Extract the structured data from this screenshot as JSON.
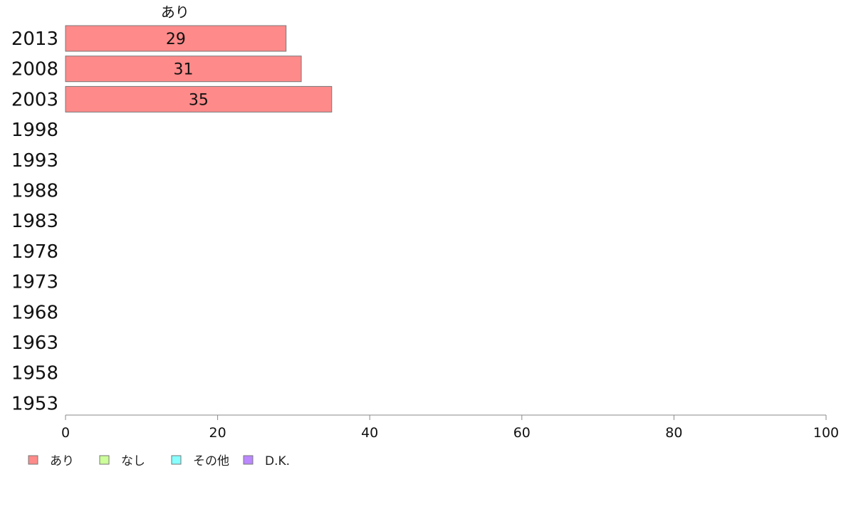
{
  "chart_data": {
    "type": "bar",
    "orientation": "horizontal",
    "stacked": true,
    "categories": [
      "2013",
      "2008",
      "2003",
      "1998",
      "1993",
      "1988",
      "1983",
      "1978",
      "1973",
      "1968",
      "1963",
      "1958",
      "1953"
    ],
    "series": [
      {
        "name": "あり",
        "color": "#ff8a8a",
        "values": [
          29,
          31,
          35,
          null,
          null,
          null,
          null,
          null,
          null,
          null,
          null,
          null,
          null
        ]
      },
      {
        "name": "なし",
        "color": "#ccff99",
        "values": [
          null,
          null,
          null,
          null,
          null,
          null,
          null,
          null,
          null,
          null,
          null,
          null,
          null
        ]
      },
      {
        "name": "その他",
        "color": "#88ffff",
        "values": [
          null,
          null,
          null,
          null,
          null,
          null,
          null,
          null,
          null,
          null,
          null,
          null,
          null
        ]
      },
      {
        "name": "D.K.",
        "color": "#bb88ff",
        "values": [
          null,
          null,
          null,
          null,
          null,
          null,
          null,
          null,
          null,
          null,
          null,
          null,
          null
        ]
      }
    ],
    "series_title": "あり",
    "xlim": [
      0,
      100
    ],
    "xticks": [
      0,
      20,
      40,
      60,
      80,
      100
    ],
    "grid": false,
    "legend_position": "bottom-left",
    "xlabel": "",
    "ylabel": "",
    "title": ""
  }
}
